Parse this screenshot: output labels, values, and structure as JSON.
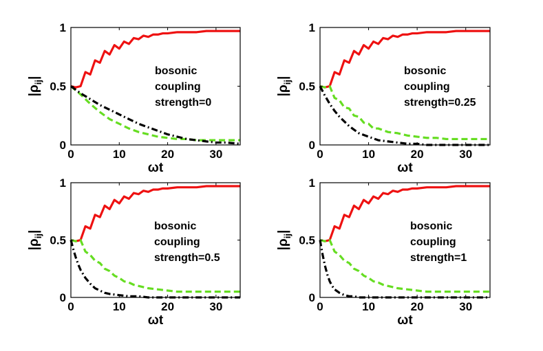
{
  "chart_data": [
    {
      "type": "line",
      "panel": "top-left",
      "xlabel": "ωt",
      "ylabel": "|ρij|",
      "xlim": [
        0,
        35
      ],
      "ylim": [
        0,
        1
      ],
      "xticks": [
        0,
        10,
        20,
        30
      ],
      "yticks": [
        0,
        0.5,
        1
      ],
      "tick_labels_x": [
        "0",
        "10",
        "20",
        "30"
      ],
      "tick_labels_y": [
        "0",
        "0.5",
        "1"
      ],
      "annotation": [
        "bosonic",
        "coupling",
        "strength=0"
      ],
      "series": [
        {
          "name": "red-solid",
          "color": "#ee1111",
          "style": "solid",
          "x": [
            0,
            1,
            2,
            3,
            4,
            5,
            6,
            7,
            8,
            9,
            10,
            11,
            12,
            13,
            14,
            15,
            16,
            17,
            18,
            19,
            20,
            22,
            24,
            26,
            28,
            30,
            32,
            35
          ],
          "y": [
            0.5,
            0.49,
            0.5,
            0.62,
            0.6,
            0.72,
            0.7,
            0.8,
            0.77,
            0.85,
            0.82,
            0.88,
            0.86,
            0.91,
            0.9,
            0.93,
            0.92,
            0.94,
            0.94,
            0.95,
            0.95,
            0.96,
            0.96,
            0.96,
            0.97,
            0.97,
            0.97,
            0.97
          ]
        },
        {
          "name": "green-dashed",
          "color": "#66dd22",
          "style": "dashed",
          "x": [
            0,
            2,
            4,
            6,
            8,
            10,
            12,
            14,
            16,
            18,
            20,
            22,
            24,
            26,
            28,
            30,
            32,
            35
          ],
          "y": [
            0.5,
            0.43,
            0.35,
            0.28,
            0.22,
            0.18,
            0.14,
            0.11,
            0.09,
            0.07,
            0.06,
            0.05,
            0.05,
            0.04,
            0.04,
            0.04,
            0.04,
            0.04
          ]
        },
        {
          "name": "black-dashdot",
          "color": "#000000",
          "style": "dashdot",
          "x": [
            0,
            2,
            4,
            6,
            8,
            10,
            12,
            14,
            16,
            18,
            20,
            22,
            24,
            26,
            28,
            30,
            32,
            35
          ],
          "y": [
            0.5,
            0.44,
            0.39,
            0.34,
            0.3,
            0.26,
            0.22,
            0.18,
            0.15,
            0.12,
            0.09,
            0.07,
            0.05,
            0.04,
            0.03,
            0.02,
            0.02,
            0.01
          ]
        }
      ]
    },
    {
      "type": "line",
      "panel": "top-right",
      "xlabel": "ωt",
      "ylabel": "|ρij|",
      "xlim": [
        0,
        35
      ],
      "ylim": [
        0,
        1
      ],
      "xticks": [
        0,
        10,
        20,
        30
      ],
      "yticks": [
        0,
        0.5,
        1
      ],
      "tick_labels_x": [
        "0",
        "10",
        "20",
        "30"
      ],
      "tick_labels_y": [
        "0",
        "0.5",
        "1"
      ],
      "annotation": [
        "bosonic",
        "coupling",
        "strength=0.25"
      ],
      "series": [
        {
          "name": "red-solid",
          "color": "#ee1111",
          "style": "solid",
          "x": [
            0,
            1,
            2,
            3,
            4,
            5,
            6,
            7,
            8,
            9,
            10,
            11,
            12,
            13,
            14,
            15,
            16,
            17,
            18,
            19,
            20,
            22,
            24,
            26,
            28,
            30,
            32,
            35
          ],
          "y": [
            0.5,
            0.49,
            0.5,
            0.62,
            0.6,
            0.72,
            0.7,
            0.8,
            0.77,
            0.85,
            0.82,
            0.88,
            0.86,
            0.91,
            0.9,
            0.93,
            0.92,
            0.94,
            0.94,
            0.95,
            0.95,
            0.96,
            0.96,
            0.96,
            0.97,
            0.97,
            0.97,
            0.97
          ]
        },
        {
          "name": "green-dashed",
          "color": "#66dd22",
          "style": "dashed",
          "x": [
            0,
            1,
            2,
            3,
            4,
            5,
            6,
            7,
            8,
            9,
            10,
            11,
            12,
            14,
            16,
            18,
            20,
            22,
            24,
            26,
            28,
            30,
            32,
            35
          ],
          "y": [
            0.5,
            0.49,
            0.5,
            0.4,
            0.38,
            0.32,
            0.31,
            0.25,
            0.24,
            0.19,
            0.18,
            0.14,
            0.14,
            0.11,
            0.1,
            0.08,
            0.07,
            0.06,
            0.06,
            0.05,
            0.05,
            0.05,
            0.05,
            0.05
          ]
        },
        {
          "name": "black-dashdot",
          "color": "#000000",
          "style": "dashdot",
          "x": [
            0,
            1,
            2,
            3,
            4,
            5,
            6,
            7,
            8,
            10,
            12,
            14,
            16,
            18,
            20,
            22,
            24,
            26,
            28,
            30,
            32,
            35
          ],
          "y": [
            0.5,
            0.42,
            0.35,
            0.29,
            0.24,
            0.2,
            0.16,
            0.13,
            0.1,
            0.07,
            0.04,
            0.03,
            0.02,
            0.01,
            0.01,
            0.0,
            0.0,
            0.0,
            0.0,
            0.0,
            0.0,
            0.0
          ]
        }
      ]
    },
    {
      "type": "line",
      "panel": "bottom-left",
      "xlabel": "ωt",
      "ylabel": "|ρij|",
      "xlim": [
        0,
        35
      ],
      "ylim": [
        0,
        1
      ],
      "xticks": [
        0,
        10,
        20,
        30
      ],
      "yticks": [
        0,
        0.5,
        1
      ],
      "tick_labels_x": [
        "0",
        "10",
        "20",
        "30"
      ],
      "tick_labels_y": [
        "0",
        "0.5",
        "1"
      ],
      "annotation": [
        "bosonic",
        "coupling",
        "strength=0.5"
      ],
      "series": [
        {
          "name": "red-solid",
          "color": "#ee1111",
          "style": "solid",
          "x": [
            0,
            1,
            2,
            3,
            4,
            5,
            6,
            7,
            8,
            9,
            10,
            11,
            12,
            13,
            14,
            15,
            16,
            17,
            18,
            19,
            20,
            22,
            24,
            26,
            28,
            30,
            32,
            35
          ],
          "y": [
            0.5,
            0.49,
            0.5,
            0.62,
            0.6,
            0.72,
            0.7,
            0.8,
            0.77,
            0.85,
            0.82,
            0.88,
            0.86,
            0.91,
            0.9,
            0.93,
            0.92,
            0.94,
            0.94,
            0.95,
            0.95,
            0.96,
            0.96,
            0.96,
            0.97,
            0.97,
            0.97,
            0.97
          ]
        },
        {
          "name": "green-dashed",
          "color": "#66dd22",
          "style": "dashed",
          "x": [
            0,
            1,
            2,
            3,
            4,
            5,
            6,
            7,
            8,
            9,
            10,
            11,
            12,
            13,
            14,
            16,
            18,
            20,
            22,
            24,
            26,
            28,
            30,
            32,
            35
          ],
          "y": [
            0.5,
            0.49,
            0.5,
            0.4,
            0.37,
            0.32,
            0.3,
            0.25,
            0.23,
            0.19,
            0.17,
            0.14,
            0.13,
            0.11,
            0.1,
            0.08,
            0.07,
            0.06,
            0.05,
            0.05,
            0.05,
            0.05,
            0.05,
            0.05,
            0.05
          ]
        },
        {
          "name": "black-dashdot",
          "color": "#000000",
          "style": "dashdot",
          "x": [
            0,
            0.5,
            1,
            1.5,
            2,
            3,
            4,
            5,
            6,
            7,
            8,
            10,
            12,
            14,
            16,
            18,
            20,
            25,
            30,
            35
          ],
          "y": [
            0.5,
            0.42,
            0.35,
            0.29,
            0.24,
            0.17,
            0.12,
            0.08,
            0.06,
            0.04,
            0.03,
            0.02,
            0.01,
            0.01,
            0.0,
            0.0,
            0.0,
            0.0,
            0.0,
            0.0
          ]
        }
      ]
    },
    {
      "type": "line",
      "panel": "bottom-right",
      "xlabel": "ωt",
      "ylabel": "|ρij|",
      "xlim": [
        0,
        35
      ],
      "ylim": [
        0,
        1
      ],
      "xticks": [
        0,
        10,
        20,
        30
      ],
      "yticks": [
        0,
        0.5,
        1
      ],
      "tick_labels_x": [
        "0",
        "10",
        "20",
        "30"
      ],
      "tick_labels_y": [
        "0",
        "0.5",
        "1"
      ],
      "annotation": [
        "bosonic",
        "coupling",
        "strength=1"
      ],
      "series": [
        {
          "name": "red-solid",
          "color": "#ee1111",
          "style": "solid",
          "x": [
            0,
            1,
            2,
            3,
            4,
            5,
            6,
            7,
            8,
            9,
            10,
            11,
            12,
            13,
            14,
            15,
            16,
            17,
            18,
            19,
            20,
            22,
            24,
            26,
            28,
            30,
            32,
            35
          ],
          "y": [
            0.5,
            0.49,
            0.5,
            0.62,
            0.6,
            0.72,
            0.7,
            0.8,
            0.77,
            0.85,
            0.82,
            0.88,
            0.86,
            0.91,
            0.9,
            0.93,
            0.92,
            0.94,
            0.94,
            0.95,
            0.95,
            0.96,
            0.96,
            0.96,
            0.97,
            0.97,
            0.97,
            0.97
          ]
        },
        {
          "name": "green-dashed",
          "color": "#66dd22",
          "style": "dashed",
          "x": [
            0,
            1,
            2,
            3,
            4,
            5,
            6,
            7,
            8,
            9,
            10,
            11,
            12,
            13,
            14,
            16,
            18,
            20,
            22,
            24,
            26,
            28,
            30,
            32,
            35
          ],
          "y": [
            0.5,
            0.49,
            0.5,
            0.4,
            0.37,
            0.32,
            0.3,
            0.25,
            0.23,
            0.19,
            0.17,
            0.14,
            0.13,
            0.11,
            0.1,
            0.08,
            0.07,
            0.06,
            0.05,
            0.05,
            0.05,
            0.05,
            0.05,
            0.05,
            0.05
          ]
        },
        {
          "name": "black-dashdot",
          "color": "#000000",
          "style": "dashdot",
          "x": [
            0,
            0.5,
            1,
            1.5,
            2,
            2.5,
            3,
            4,
            5,
            6,
            7,
            8,
            10,
            12,
            15,
            20,
            25,
            30,
            35
          ],
          "y": [
            0.5,
            0.38,
            0.28,
            0.2,
            0.14,
            0.1,
            0.07,
            0.04,
            0.02,
            0.01,
            0.01,
            0.0,
            0.0,
            0.0,
            0.0,
            0.0,
            0.0,
            0.0,
            0.0
          ]
        }
      ]
    }
  ]
}
